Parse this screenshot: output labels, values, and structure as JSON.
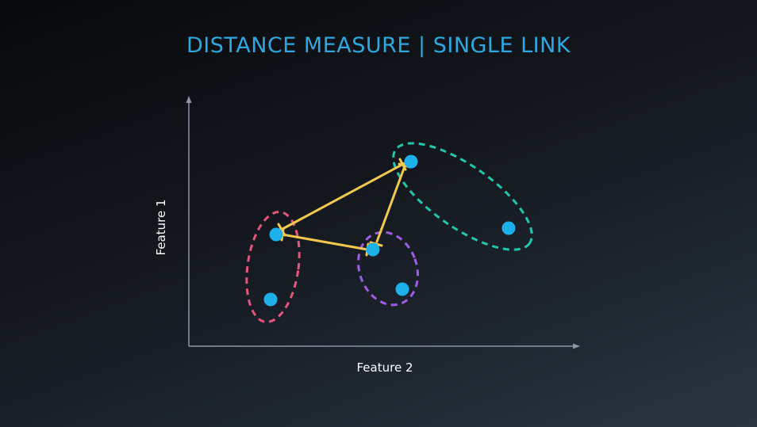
{
  "title": "DISTANCE MEASURE | SINGLE LINK",
  "x_axis_label": "Feature 2",
  "y_axis_label": "Feature 1",
  "colors": {
    "title": "#2ea8e0",
    "point": "#1eb0ea",
    "link_line": "#f2c94c",
    "cluster_pink": "#e6557a",
    "cluster_purple": "#a05ce6",
    "cluster_teal": "#22c6ad",
    "axis": "#8a95a5"
  },
  "clusters": [
    {
      "name": "pink",
      "points": 2
    },
    {
      "name": "purple",
      "points": 2
    },
    {
      "name": "teal",
      "points": 2
    }
  ]
}
